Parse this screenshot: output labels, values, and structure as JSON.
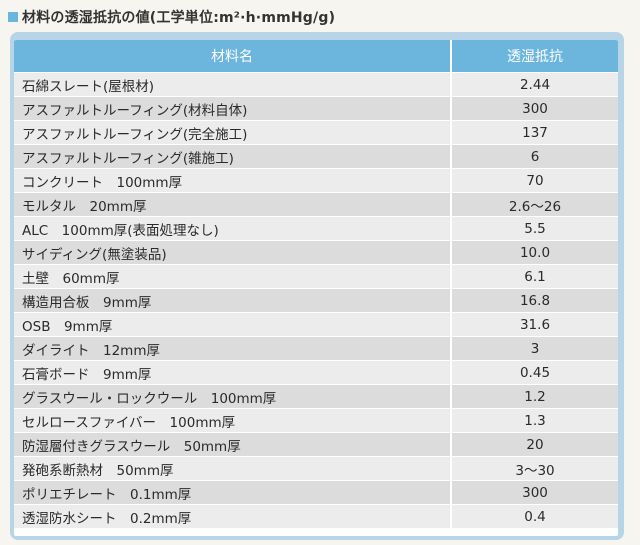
{
  "title": "材料の透湿抵抗の値(工学単位:m²·h·mmHg/g)",
  "table": {
    "headers": [
      "材料名",
      "透湿抵抗"
    ],
    "rows": [
      {
        "material": "石綿スレート(屋根材)",
        "value": "2.44"
      },
      {
        "material": "アスファルトルーフィング(材料自体)",
        "value": "300"
      },
      {
        "material": "アスファルトルーフィング(完全施工)",
        "value": "137"
      },
      {
        "material": "アスファルトルーフィング(雑施工)",
        "value": "6"
      },
      {
        "material": "コンクリート　100mm厚",
        "value": "70"
      },
      {
        "material": "モルタル　20mm厚",
        "value": "2.6～26"
      },
      {
        "material": "ALC　100mm厚(表面処理なし)",
        "value": "5.5"
      },
      {
        "material": "サイディング(無塗装品)",
        "value": "10.0"
      },
      {
        "material": "土壁　60mm厚",
        "value": "6.1"
      },
      {
        "material": "構造用合板　9mm厚",
        "value": "16.8"
      },
      {
        "material": "OSB　9mm厚",
        "value": "31.6"
      },
      {
        "material": "ダイライト　12mm厚",
        "value": "3"
      },
      {
        "material": "石膏ボード　9mm厚",
        "value": "0.45"
      },
      {
        "material": "グラスウール・ロックウール　100mm厚",
        "value": "1.2"
      },
      {
        "material": "セルロースファイバー　100mm厚",
        "value": "1.3"
      },
      {
        "material": "防湿層付きグラスウール　50mm厚",
        "value": "20"
      },
      {
        "material": "発砲系断熱材　50mm厚",
        "value": "3～30"
      },
      {
        "material": "ポリエチレート　0.1mm厚",
        "value": "300"
      },
      {
        "material": "透湿防水シート　0.2mm厚",
        "value": "0.4"
      }
    ]
  },
  "colors": {
    "header_bg": "#6cb6de",
    "frame": "#b7d5e7",
    "row_light": "#ececec",
    "row_dark": "#dcdcdc"
  }
}
